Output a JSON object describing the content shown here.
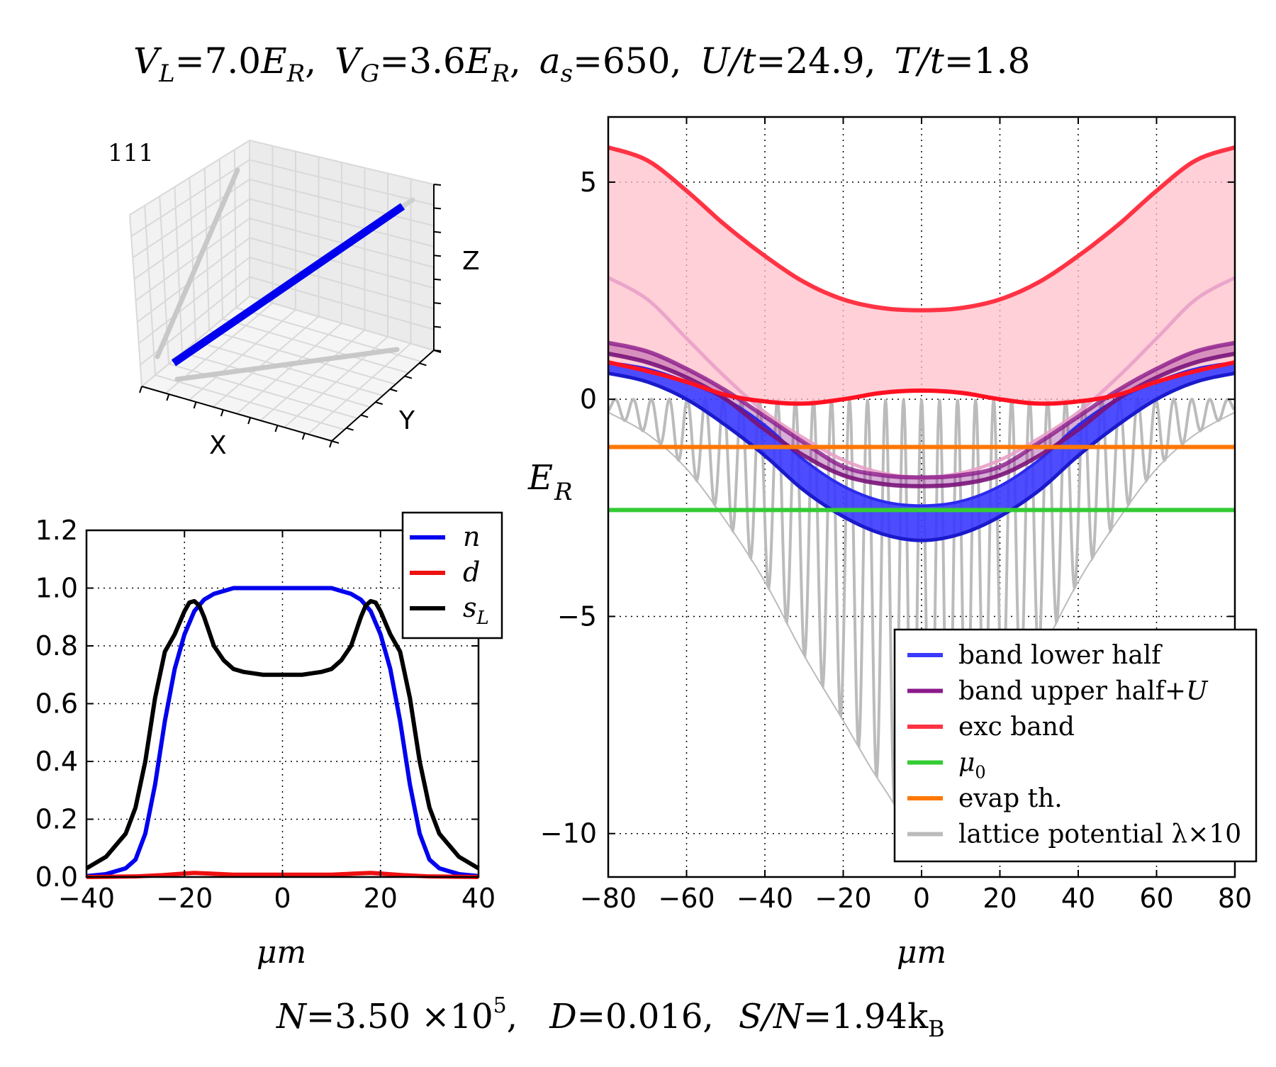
{
  "header": {
    "params": [
      {
        "sym": "V",
        "sub": "L",
        "eq": "=7.0",
        "unit": "E",
        "unit_sub": "R"
      },
      {
        "sym": "V",
        "sub": "G",
        "eq": "=3.6",
        "unit": "E",
        "unit_sub": "R"
      },
      {
        "sym": "a",
        "sub": "s",
        "eq": "=650",
        "unit": "",
        "unit_sub": ""
      },
      {
        "sym": "U/t",
        "sub": "",
        "eq": "=24.9",
        "unit": "",
        "unit_sub": ""
      },
      {
        "sym": "T/t",
        "sub": "",
        "eq": "=1.8",
        "unit": "",
        "unit_sub": ""
      }
    ]
  },
  "footer": {
    "N_text": "N",
    "N_value": "=3.50 ×10",
    "N_exp": "5",
    "D_text": "D",
    "D_value": "=0.016",
    "S_text": "S/N",
    "S_value": "=1.94k",
    "S_sub": "B"
  },
  "colors": {
    "blue": "#0000ee",
    "red": "#ee1111",
    "black": "#000000",
    "band_lower": "#3a3aff",
    "band_upper": "#8b1a8b",
    "exc_band": "#ff3344",
    "exc_fill": "#ffc0cb",
    "mu0": "#33cc33",
    "evap": "#ff7700",
    "lattice": "#bbbbbb"
  },
  "chart_data": [
    {
      "type": "line3d",
      "label": "111",
      "axes": {
        "x": "X",
        "y": "Y",
        "z": "Z"
      },
      "series": [
        {
          "name": "beam",
          "color": "#0000ee"
        }
      ]
    },
    {
      "type": "line",
      "xlabel": "μm",
      "ylabel": "",
      "xlim": [
        -40,
        40
      ],
      "ylim": [
        0,
        1.2
      ],
      "xticks": [
        -40,
        -20,
        0,
        20,
        40
      ],
      "yticks": [
        0.0,
        0.2,
        0.4,
        0.6,
        0.8,
        1.0,
        1.2
      ],
      "grid": true,
      "legend_position": "top-right",
      "series": [
        {
          "name": "n",
          "color": "#0000ee",
          "x": [
            -40,
            -36,
            -32,
            -30,
            -28,
            -26,
            -24,
            -22,
            -20,
            -18,
            -16,
            -14,
            -12,
            -10,
            -8,
            -6,
            -4,
            -2,
            0,
            2,
            4,
            6,
            8,
            10,
            12,
            14,
            16,
            18,
            20,
            22,
            24,
            26,
            28,
            30,
            32,
            36,
            40
          ],
          "y": [
            0.003,
            0.01,
            0.03,
            0.06,
            0.15,
            0.32,
            0.54,
            0.72,
            0.84,
            0.92,
            0.96,
            0.98,
            0.99,
            1.0,
            1.0,
            1.0,
            1.0,
            1.0,
            1.0,
            1.0,
            1.0,
            1.0,
            1.0,
            1.0,
            0.99,
            0.98,
            0.96,
            0.92,
            0.84,
            0.72,
            0.54,
            0.32,
            0.15,
            0.06,
            0.03,
            0.01,
            0.003
          ]
        },
        {
          "name": "d",
          "color": "#ee1111",
          "x": [
            -40,
            -30,
            -25,
            -20,
            -18,
            -15,
            -10,
            -5,
            0,
            5,
            10,
            15,
            18,
            20,
            25,
            30,
            40
          ],
          "y": [
            0.0,
            0.002,
            0.006,
            0.012,
            0.014,
            0.012,
            0.008,
            0.008,
            0.008,
            0.008,
            0.008,
            0.012,
            0.014,
            0.012,
            0.006,
            0.002,
            0.0
          ]
        },
        {
          "name": "s",
          "name_sub": "L",
          "color": "#000000",
          "x": [
            -40,
            -36,
            -32,
            -30,
            -28,
            -26,
            -24,
            -23,
            -22,
            -21,
            -20,
            -19,
            -18,
            -17,
            -16,
            -15,
            -14,
            -12,
            -10,
            -8,
            -6,
            -4,
            -2,
            0,
            2,
            4,
            6,
            8,
            10,
            12,
            14,
            15,
            16,
            17,
            18,
            19,
            20,
            21,
            22,
            23,
            24,
            26,
            28,
            30,
            32,
            36,
            40
          ],
          "y": [
            0.03,
            0.07,
            0.15,
            0.24,
            0.4,
            0.62,
            0.78,
            0.81,
            0.84,
            0.88,
            0.92,
            0.95,
            0.955,
            0.94,
            0.9,
            0.85,
            0.8,
            0.75,
            0.72,
            0.71,
            0.705,
            0.7,
            0.7,
            0.7,
            0.7,
            0.7,
            0.705,
            0.71,
            0.72,
            0.75,
            0.8,
            0.85,
            0.9,
            0.94,
            0.955,
            0.95,
            0.92,
            0.88,
            0.84,
            0.81,
            0.78,
            0.62,
            0.4,
            0.24,
            0.15,
            0.07,
            0.03
          ]
        }
      ]
    },
    {
      "type": "area",
      "xlabel": "μm",
      "ylabel": "E",
      "ylabel_sub": "R",
      "xlim": [
        -80,
        80
      ],
      "ylim": [
        -11,
        6.5
      ],
      "xticks": [
        -80,
        -60,
        -40,
        -20,
        0,
        20,
        40,
        60,
        80
      ],
      "yticks": [
        -10,
        -5,
        0,
        5
      ],
      "grid": true,
      "legend_position": "lower-right",
      "legend": [
        {
          "label": "band lower half",
          "color": "#3a3aff"
        },
        {
          "label": "band upper half",
          "label_math": "+U",
          "color": "#8b1a8b"
        },
        {
          "label": "exc band",
          "color": "#ff3344"
        },
        {
          "label": "μ",
          "label_sub": "0",
          "color": "#33cc33"
        },
        {
          "label": "evap th.",
          "color": "#ff7700"
        },
        {
          "label": "lattice potential  λ×10",
          "color": "#bbbbbb"
        }
      ],
      "series": [
        {
          "name": "band lower bottom",
          "x": [
            -80,
            -70,
            -60,
            -50,
            -40,
            -30,
            -20,
            -10,
            0,
            10,
            20,
            30,
            40,
            50,
            60,
            70,
            80
          ],
          "y": [
            0.6,
            0.4,
            0.0,
            -0.6,
            -1.3,
            -2.1,
            -2.7,
            -3.1,
            -3.25,
            -3.1,
            -2.7,
            -2.1,
            -1.3,
            -0.6,
            0.0,
            0.4,
            0.6
          ]
        },
        {
          "name": "band lower top",
          "x": [
            -80,
            -70,
            -60,
            -50,
            -40,
            -30,
            -20,
            -10,
            0,
            10,
            20,
            30,
            40,
            50,
            60,
            70,
            80
          ],
          "y": [
            0.85,
            0.7,
            0.4,
            0.0,
            -0.6,
            -1.4,
            -2.0,
            -2.35,
            -2.45,
            -2.35,
            -2.0,
            -1.4,
            -0.6,
            0.0,
            0.4,
            0.7,
            0.85
          ]
        },
        {
          "name": "band upper bottom",
          "x": [
            -80,
            -70,
            -60,
            -50,
            -40,
            -30,
            -20,
            -10,
            0,
            10,
            20,
            30,
            40,
            50,
            60,
            70,
            80
          ],
          "y": [
            1.05,
            0.85,
            0.5,
            0.0,
            -0.7,
            -1.3,
            -1.75,
            -1.95,
            -2.0,
            -1.95,
            -1.75,
            -1.3,
            -0.7,
            0.0,
            0.5,
            0.85,
            1.05
          ]
        },
        {
          "name": "band upper top",
          "x": [
            -80,
            -70,
            -60,
            -50,
            -40,
            -30,
            -20,
            -10,
            0,
            10,
            20,
            30,
            40,
            50,
            60,
            70,
            80
          ],
          "y": [
            1.3,
            1.1,
            0.7,
            0.2,
            -0.4,
            -1.0,
            -1.55,
            -1.75,
            -1.8,
            -1.75,
            -1.55,
            -1.0,
            -0.4,
            0.2,
            0.7,
            1.1,
            1.3
          ]
        },
        {
          "name": "exc band lower",
          "x": [
            -80,
            -70,
            -60,
            -50,
            -40,
            -30,
            -20,
            -10,
            0,
            10,
            20,
            30,
            40,
            50,
            60,
            70,
            80
          ],
          "y": [
            0.85,
            0.65,
            0.4,
            0.1,
            -0.05,
            -0.1,
            0.0,
            0.15,
            0.2,
            0.15,
            0.0,
            -0.1,
            -0.05,
            0.1,
            0.4,
            0.65,
            0.85
          ]
        },
        {
          "name": "exc band middle",
          "x": [
            -80,
            -70,
            -60,
            -50,
            -40,
            -30,
            -20,
            -10,
            0,
            10,
            20,
            30,
            40,
            50,
            60,
            70,
            80
          ],
          "y": [
            2.8,
            2.3,
            1.4,
            0.5,
            -0.3,
            -0.9,
            -1.4,
            -1.7,
            -1.8,
            -1.7,
            -1.4,
            -0.9,
            -0.3,
            0.5,
            1.4,
            2.3,
            2.8
          ]
        },
        {
          "name": "exc band upper",
          "x": [
            -80,
            -70,
            -60,
            -50,
            -40,
            -30,
            -20,
            -10,
            0,
            10,
            20,
            30,
            40,
            50,
            60,
            70,
            80
          ],
          "y": [
            5.8,
            5.5,
            4.8,
            4.0,
            3.3,
            2.7,
            2.3,
            2.1,
            2.05,
            2.1,
            2.3,
            2.7,
            3.3,
            4.0,
            4.8,
            5.5,
            5.8
          ]
        },
        {
          "name": "mu0",
          "x": [
            -80,
            80
          ],
          "y": [
            -2.55,
            -2.55
          ]
        },
        {
          "name": "evap th.",
          "x": [
            -80,
            80
          ],
          "y": [
            -1.1,
            -1.1
          ]
        },
        {
          "name": "lattice envelope",
          "x": [
            -80,
            -70,
            -60,
            -50,
            -40,
            -30,
            -20,
            -10,
            0,
            10,
            20,
            30,
            40,
            50,
            60,
            70,
            80
          ],
          "y": [
            -0.3,
            -0.8,
            -1.6,
            -2.8,
            -4.2,
            -5.9,
            -7.4,
            -8.9,
            -10.0,
            -8.9,
            -7.4,
            -5.9,
            -4.2,
            -2.8,
            -1.6,
            -0.8,
            -0.3
          ]
        }
      ]
    }
  ]
}
